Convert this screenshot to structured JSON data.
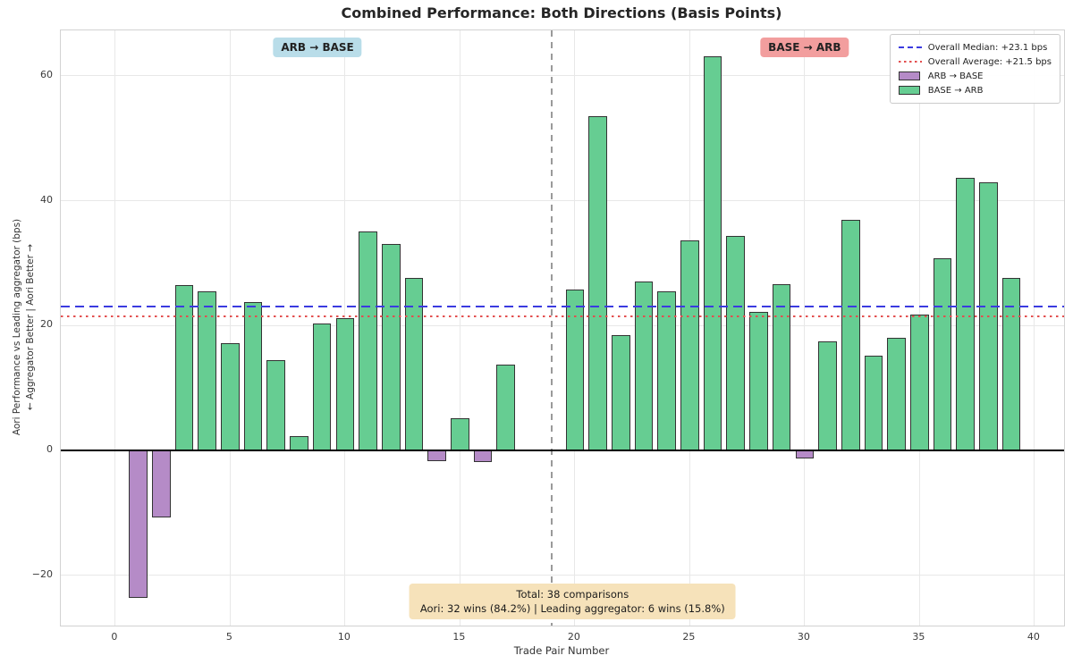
{
  "chart_data": {
    "type": "bar",
    "title": "Combined Performance: Both Directions (Basis Points)",
    "xlabel": "Trade Pair Number",
    "ylabel_line1": "Aori Performance vs Leading aggregator (bps)",
    "ylabel_line2": "← Aggregator Better | Aori Better →",
    "xlim": [
      -2.37,
      41.29
    ],
    "ylim": [
      -28.07,
      67.3
    ],
    "xticks": [
      0,
      5,
      10,
      15,
      20,
      25,
      30,
      35,
      40
    ],
    "yticks": [
      -20,
      0,
      20,
      40,
      60
    ],
    "ytick_labels": [
      "−20",
      "0",
      "20",
      "40",
      "60"
    ],
    "grid": true,
    "legend_position": "upper right",
    "overall_median_bps": 23.1,
    "overall_average_bps": 21.5,
    "group_separator_x": 19,
    "bar_colors": {
      "positive": "#66cd92",
      "negative": "#b58bc7",
      "edge": "#333333"
    },
    "line_colors": {
      "median": "#3b3be0",
      "average": "#e34f4f",
      "zero": "#000000",
      "separator": "#9a9a9a"
    },
    "bars": [
      {
        "x": 1,
        "value": -23.6
      },
      {
        "x": 2,
        "value": -10.7
      },
      {
        "x": 3,
        "value": 26.5
      },
      {
        "x": 4,
        "value": 25.5
      },
      {
        "x": 5,
        "value": 17.2
      },
      {
        "x": 6,
        "value": 23.8
      },
      {
        "x": 7,
        "value": 14.5
      },
      {
        "x": 8,
        "value": 2.3
      },
      {
        "x": 9,
        "value": 20.4
      },
      {
        "x": 10,
        "value": 21.2
      },
      {
        "x": 11,
        "value": 35.1
      },
      {
        "x": 12,
        "value": 33.1
      },
      {
        "x": 13,
        "value": 27.7
      },
      {
        "x": 14,
        "value": -1.7
      },
      {
        "x": 15,
        "value": 5.2
      },
      {
        "x": 16,
        "value": -1.8
      },
      {
        "x": 17,
        "value": 13.8
      },
      {
        "x": 18,
        "value": 0.0
      },
      {
        "x": 20,
        "value": 25.8
      },
      {
        "x": 21,
        "value": 53.6
      },
      {
        "x": 22,
        "value": 18.5
      },
      {
        "x": 23,
        "value": 27.1
      },
      {
        "x": 24,
        "value": 25.5
      },
      {
        "x": 25,
        "value": 33.7
      },
      {
        "x": 26,
        "value": 63.2
      },
      {
        "x": 27,
        "value": 34.4
      },
      {
        "x": 28,
        "value": 22.2
      },
      {
        "x": 29,
        "value": 26.7
      },
      {
        "x": 30,
        "value": -1.3
      },
      {
        "x": 31,
        "value": 17.5
      },
      {
        "x": 32,
        "value": 37.0
      },
      {
        "x": 33,
        "value": 15.2
      },
      {
        "x": 34,
        "value": 18.1
      },
      {
        "x": 35,
        "value": 21.8
      },
      {
        "x": 36,
        "value": 30.8
      },
      {
        "x": 37,
        "value": 43.7
      },
      {
        "x": 38,
        "value": 43.0
      },
      {
        "x": 39,
        "value": 27.7
      }
    ],
    "annotations": {
      "arb_base": {
        "label": "ARB → BASE",
        "bg": "#b9dde9",
        "x": 8.8
      },
      "base_arb": {
        "label": "BASE → ARB",
        "bg": "#f29e9e",
        "x": 30
      },
      "totals": {
        "line1": "Total: 38 comparisons",
        "line2": "Aori: 32 wins (84.2%) | Leading aggregator: 6 wins (15.8%)",
        "bg": "#f6e2ba",
        "x": 19.9
      }
    }
  },
  "legend": {
    "items": [
      {
        "style": "dashed-line",
        "color": "#3b3be0",
        "label": "Overall Median: +23.1 bps"
      },
      {
        "style": "dotted-line",
        "color": "#e34f4f",
        "label": "Overall Average: +21.5 bps"
      },
      {
        "style": "patch",
        "color": "#b58bc7",
        "label": "ARB → BASE"
      },
      {
        "style": "patch",
        "color": "#66cd92",
        "label": "BASE → ARB"
      }
    ]
  }
}
